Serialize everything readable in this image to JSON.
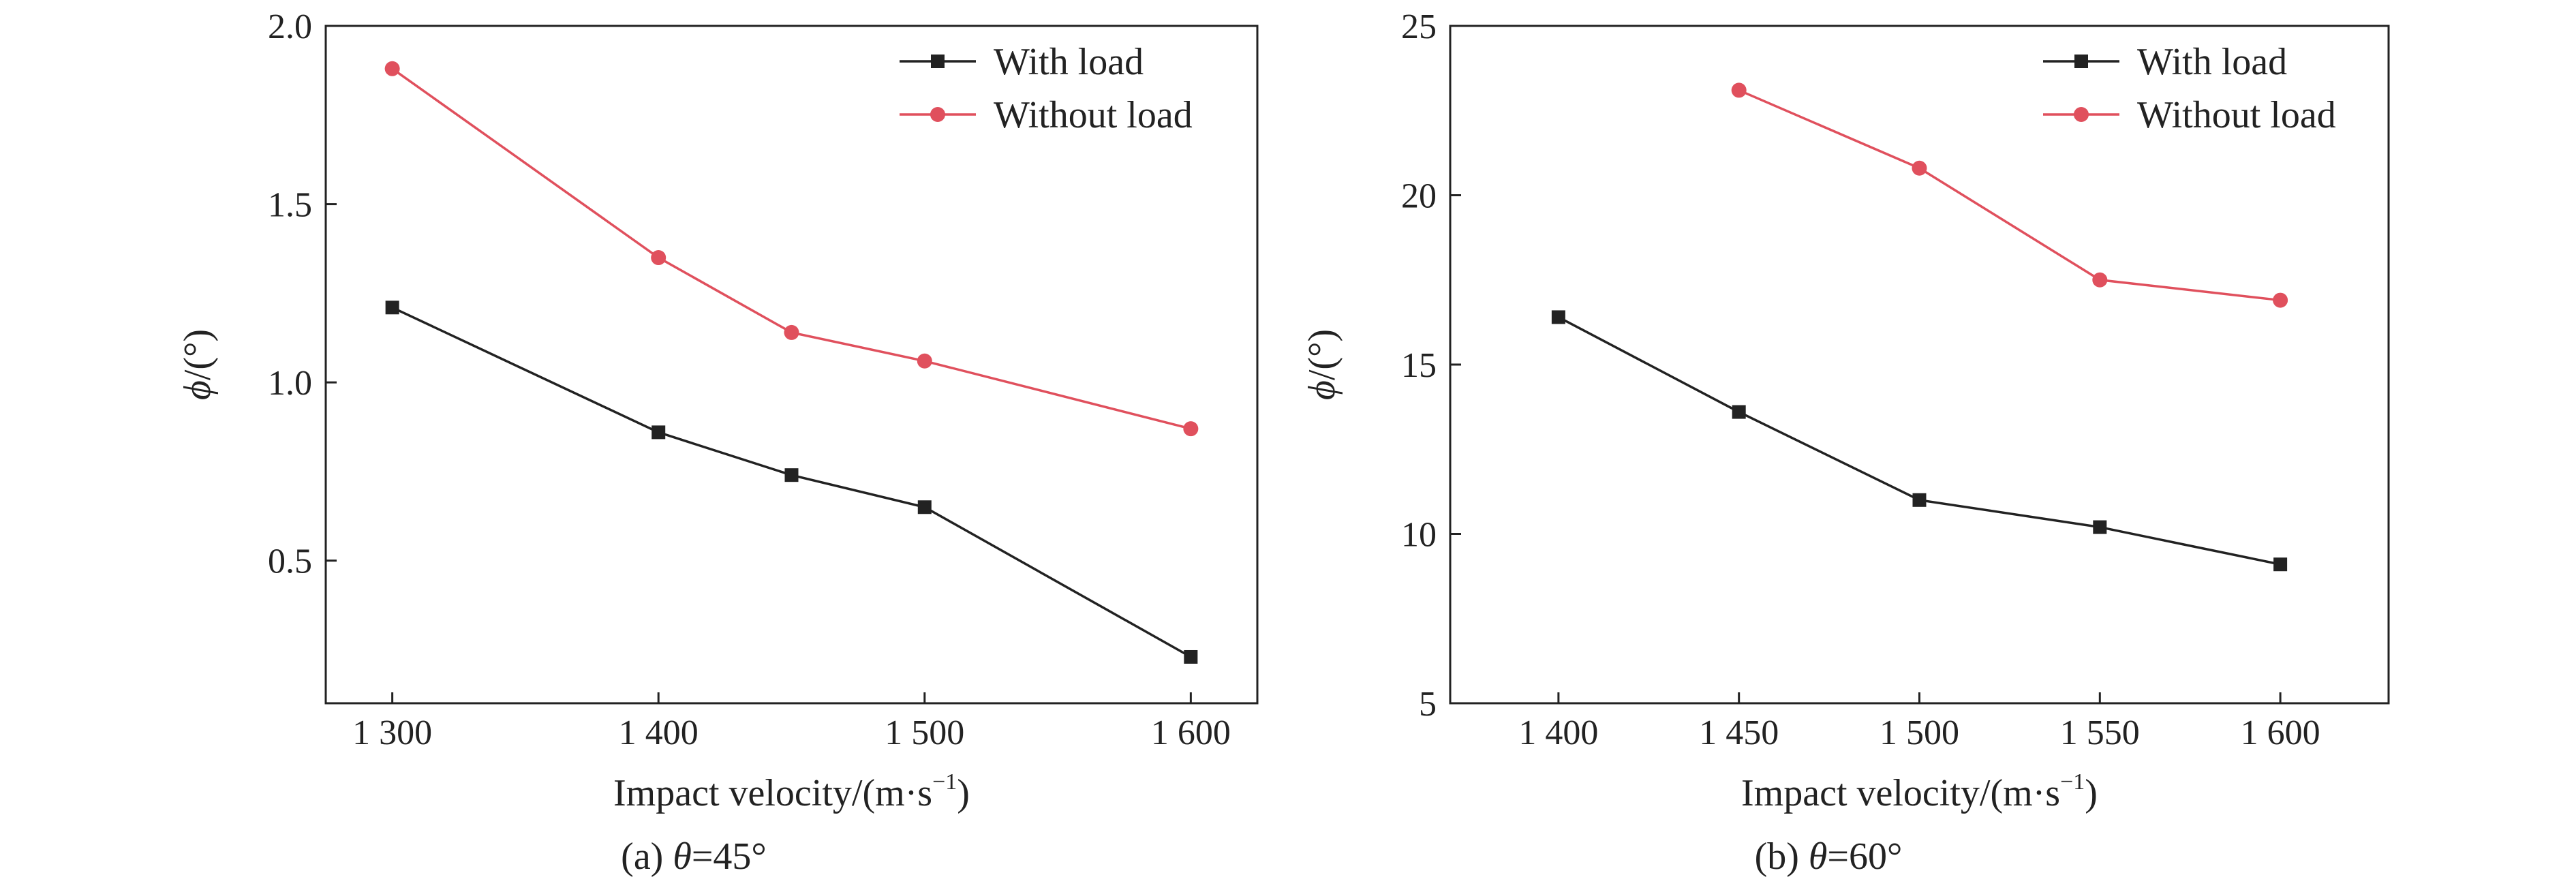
{
  "chart_data": [
    {
      "type": "line",
      "caption_prefix": "(a) ",
      "caption_symbol": "θ",
      "caption_suffix": "=45°",
      "xlabel": "Impact velocity/(m·s",
      "xlabel_sup": "−1",
      "xlabel_end": ")",
      "ylabel_symbol": "ϕ",
      "ylabel_rest": "/(°)",
      "xlim": [
        1275,
        1625
      ],
      "ylim": [
        0.1,
        2.0
      ],
      "xticks": [
        1300,
        1400,
        1500,
        1600
      ],
      "xtick_labels": [
        "1 300",
        "1 400",
        "1 500",
        "1 600"
      ],
      "yticks": [
        0.5,
        1.0,
        1.5,
        2.0
      ],
      "ytick_labels": [
        "0.5",
        "1.0",
        "1.5",
        "2.0"
      ],
      "legend_position": "top-right",
      "series": [
        {
          "name": "With load",
          "color": "#222222",
          "marker": "square",
          "x": [
            1300,
            1400,
            1450,
            1500,
            1600
          ],
          "y": [
            1.21,
            0.86,
            0.74,
            0.65,
            0.23
          ]
        },
        {
          "name": "Without load",
          "color": "#e0505d",
          "marker": "circle",
          "x": [
            1300,
            1400,
            1450,
            1500,
            1600
          ],
          "y": [
            1.88,
            1.35,
            1.14,
            1.06,
            0.87
          ]
        }
      ]
    },
    {
      "type": "line",
      "caption_prefix": "(b) ",
      "caption_symbol": "θ",
      "caption_suffix": "=60°",
      "xlabel": "Impact velocity/(m·s",
      "xlabel_sup": "−1",
      "xlabel_end": ")",
      "ylabel_symbol": "ϕ",
      "ylabel_rest": "/(°)",
      "xlim": [
        1370,
        1630
      ],
      "ylim": [
        5,
        25
      ],
      "xticks": [
        1400,
        1450,
        1500,
        1550,
        1600
      ],
      "xtick_labels": [
        "1 400",
        "1 450",
        "1 500",
        "1 550",
        "1 600"
      ],
      "yticks": [
        5,
        10,
        15,
        20,
        25
      ],
      "ytick_labels": [
        "5",
        "10",
        "15",
        "20",
        "25"
      ],
      "legend_position": "top-right",
      "series": [
        {
          "name": "With load",
          "color": "#222222",
          "marker": "square",
          "x": [
            1400,
            1450,
            1500,
            1550,
            1600
          ],
          "y": [
            16.4,
            13.6,
            11.0,
            10.2,
            9.1
          ]
        },
        {
          "name": "Without load",
          "color": "#e0505d",
          "marker": "circle",
          "x": [
            1450,
            1500,
            1550,
            1600
          ],
          "y": [
            23.1,
            20.8,
            17.5,
            16.9
          ]
        }
      ]
    }
  ]
}
